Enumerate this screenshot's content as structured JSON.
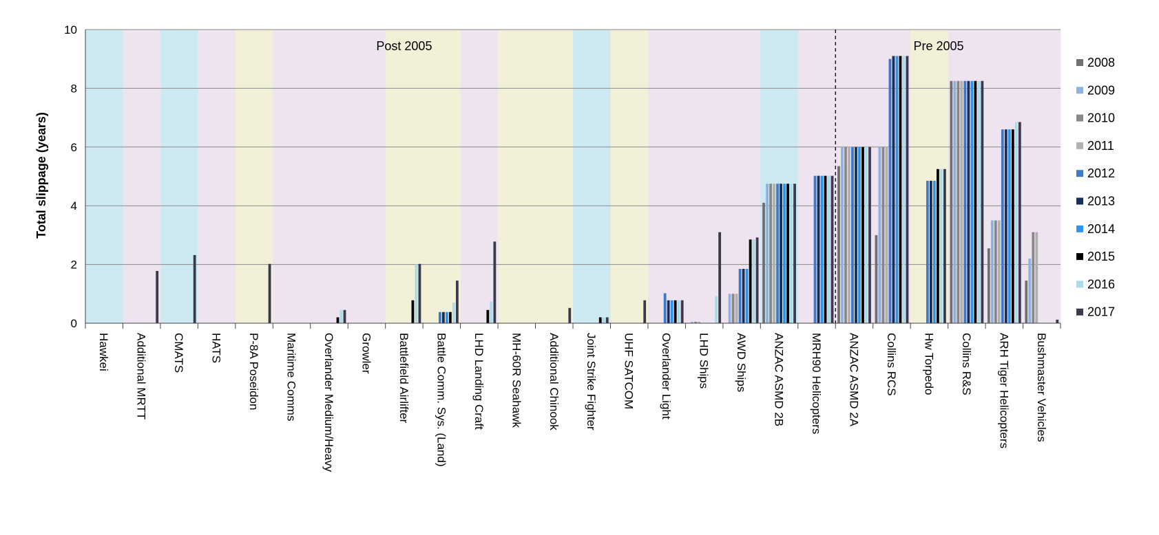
{
  "chart_data": {
    "type": "bar",
    "ylabel": "Total slippage (years)",
    "ylim": [
      0,
      10
    ],
    "yticks": [
      0,
      2,
      4,
      6,
      8,
      10
    ],
    "grid": true,
    "legend_position": "right",
    "annotations": [
      {
        "text": "Post 2005",
        "at_category": 8.5
      },
      {
        "text": "Pre 2005",
        "at_category": 22.75
      }
    ],
    "divider_after_category": "MRH90 Helicopters",
    "categories": [
      "Hawkei",
      "Additional MRTT",
      "CMATS",
      "HATS",
      "P-8A Poseidon",
      "Maritime Comms",
      "Overlander Medium/Heavy",
      "Growler",
      "Battlefield Airlifter",
      "Battle Comm. Sys. (Land)",
      "LHD Landing Craft",
      "MH-60R Seahawk",
      "Additional Chinook",
      "Joint Strike Fighter",
      "UHF SATCOM",
      "Overlander Light",
      "LHD Ships",
      "AWD Ships",
      "ANZAC ASMD 2B",
      "MRH90 Helicopters",
      "ANZAC ASMD 2A",
      "Collins RCS",
      "Hw Torpedo",
      "Collins R&S",
      "ARH Tiger Helicopters",
      "Bushmaster Vehicles"
    ],
    "background_colors": [
      "#cde9f2",
      "#eee4f0",
      "#cde9f2",
      "#eee4f0",
      "#f2f0d6",
      "#eee4f0",
      "#eee4f0",
      "#eee4f0",
      "#f2f0d6",
      "#f2f0d6",
      "#eee4f0",
      "#f2f0d6",
      "#f2f0d6",
      "#cde9f2",
      "#f2f0d6",
      "#eee4f0",
      "#eee4f0",
      "#eee4f0",
      "#cde9f2",
      "#eee4f0",
      "#eee4f0",
      "#eee4f0",
      "#f2f0d6",
      "#eee4f0",
      "#eee4f0",
      "#eee4f0"
    ],
    "series": [
      {
        "name": "2008",
        "color": "#707070",
        "values": [
          0,
          0,
          0,
          0,
          0,
          0,
          0,
          0,
          0,
          0,
          0,
          0,
          0,
          0,
          0,
          0,
          0,
          0,
          4.1,
          0,
          5.35,
          3.0,
          0,
          8.25,
          2.55,
          1.45
        ]
      },
      {
        "name": "2009",
        "color": "#8fb1dd",
        "values": [
          0,
          0,
          0,
          0,
          0,
          0,
          0,
          0,
          0,
          0,
          0,
          0,
          0,
          0,
          0,
          0,
          0.05,
          1.0,
          4.75,
          0,
          6.0,
          6.0,
          0,
          8.25,
          3.5,
          2.2
        ]
      },
      {
        "name": "2010",
        "color": "#888888",
        "values": [
          0,
          0,
          0,
          0,
          0,
          0,
          0,
          0,
          0,
          0,
          0,
          0,
          0,
          0,
          0,
          0,
          0.05,
          1.0,
          4.75,
          0,
          6.0,
          6.0,
          0,
          8.25,
          3.5,
          3.1
        ]
      },
      {
        "name": "2011",
        "color": "#b0b0b0",
        "values": [
          0,
          0,
          0,
          0,
          0,
          0,
          0,
          0,
          0,
          0,
          0,
          0,
          0,
          0,
          0,
          0,
          0.05,
          1.0,
          4.75,
          0,
          6.0,
          6.0,
          0,
          8.25,
          3.5,
          3.1
        ]
      },
      {
        "name": "2012",
        "color": "#3f78c6",
        "values": [
          0,
          0,
          0,
          0,
          0,
          0,
          0,
          0,
          0,
          0.38,
          0,
          0,
          0,
          0,
          0,
          1.02,
          0,
          1.85,
          4.75,
          5.02,
          6.0,
          9.0,
          4.85,
          8.25,
          6.6,
          0
        ]
      },
      {
        "name": "2013",
        "color": "#162e58",
        "values": [
          0,
          0,
          0,
          0,
          0,
          0,
          0,
          0,
          0,
          0.38,
          0,
          0,
          0,
          0,
          0,
          0.78,
          0,
          1.85,
          4.75,
          5.02,
          6.0,
          9.1,
          4.85,
          8.25,
          6.6,
          0
        ]
      },
      {
        "name": "2014",
        "color": "#2e93ef",
        "values": [
          0,
          0,
          0,
          0,
          0,
          0,
          0,
          0,
          0,
          0.38,
          0,
          0,
          0,
          0,
          0,
          0.78,
          0,
          1.85,
          4.75,
          5.02,
          6.0,
          9.1,
          4.85,
          8.25,
          6.6,
          0
        ]
      },
      {
        "name": "2015",
        "color": "#000000",
        "values": [
          0,
          0,
          0,
          0,
          0,
          0,
          0.2,
          0,
          0.78,
          0.38,
          0.45,
          0,
          0,
          0.2,
          0,
          0.78,
          0,
          2.85,
          4.75,
          5.02,
          6.0,
          9.1,
          5.25,
          8.25,
          6.6,
          0
        ]
      },
      {
        "name": "2016",
        "color": "#a9dbea",
        "values": [
          0,
          0,
          0,
          0,
          0,
          0,
          0.45,
          0,
          2.0,
          0.7,
          0.75,
          0,
          0,
          0.2,
          0,
          0.78,
          0.92,
          2.85,
          4.75,
          5.02,
          6.0,
          9.1,
          5.25,
          8.25,
          6.85,
          0
        ]
      },
      {
        "name": "2017",
        "color": "#3a3a4c",
        "values": [
          0,
          1.78,
          2.32,
          0,
          2.02,
          0,
          0.45,
          0,
          2.02,
          1.45,
          2.78,
          0,
          0.52,
          0.2,
          0.78,
          0.78,
          3.1,
          2.92,
          4.75,
          5.02,
          6.0,
          9.1,
          5.25,
          8.25,
          6.85,
          0.12
        ]
      }
    ]
  }
}
